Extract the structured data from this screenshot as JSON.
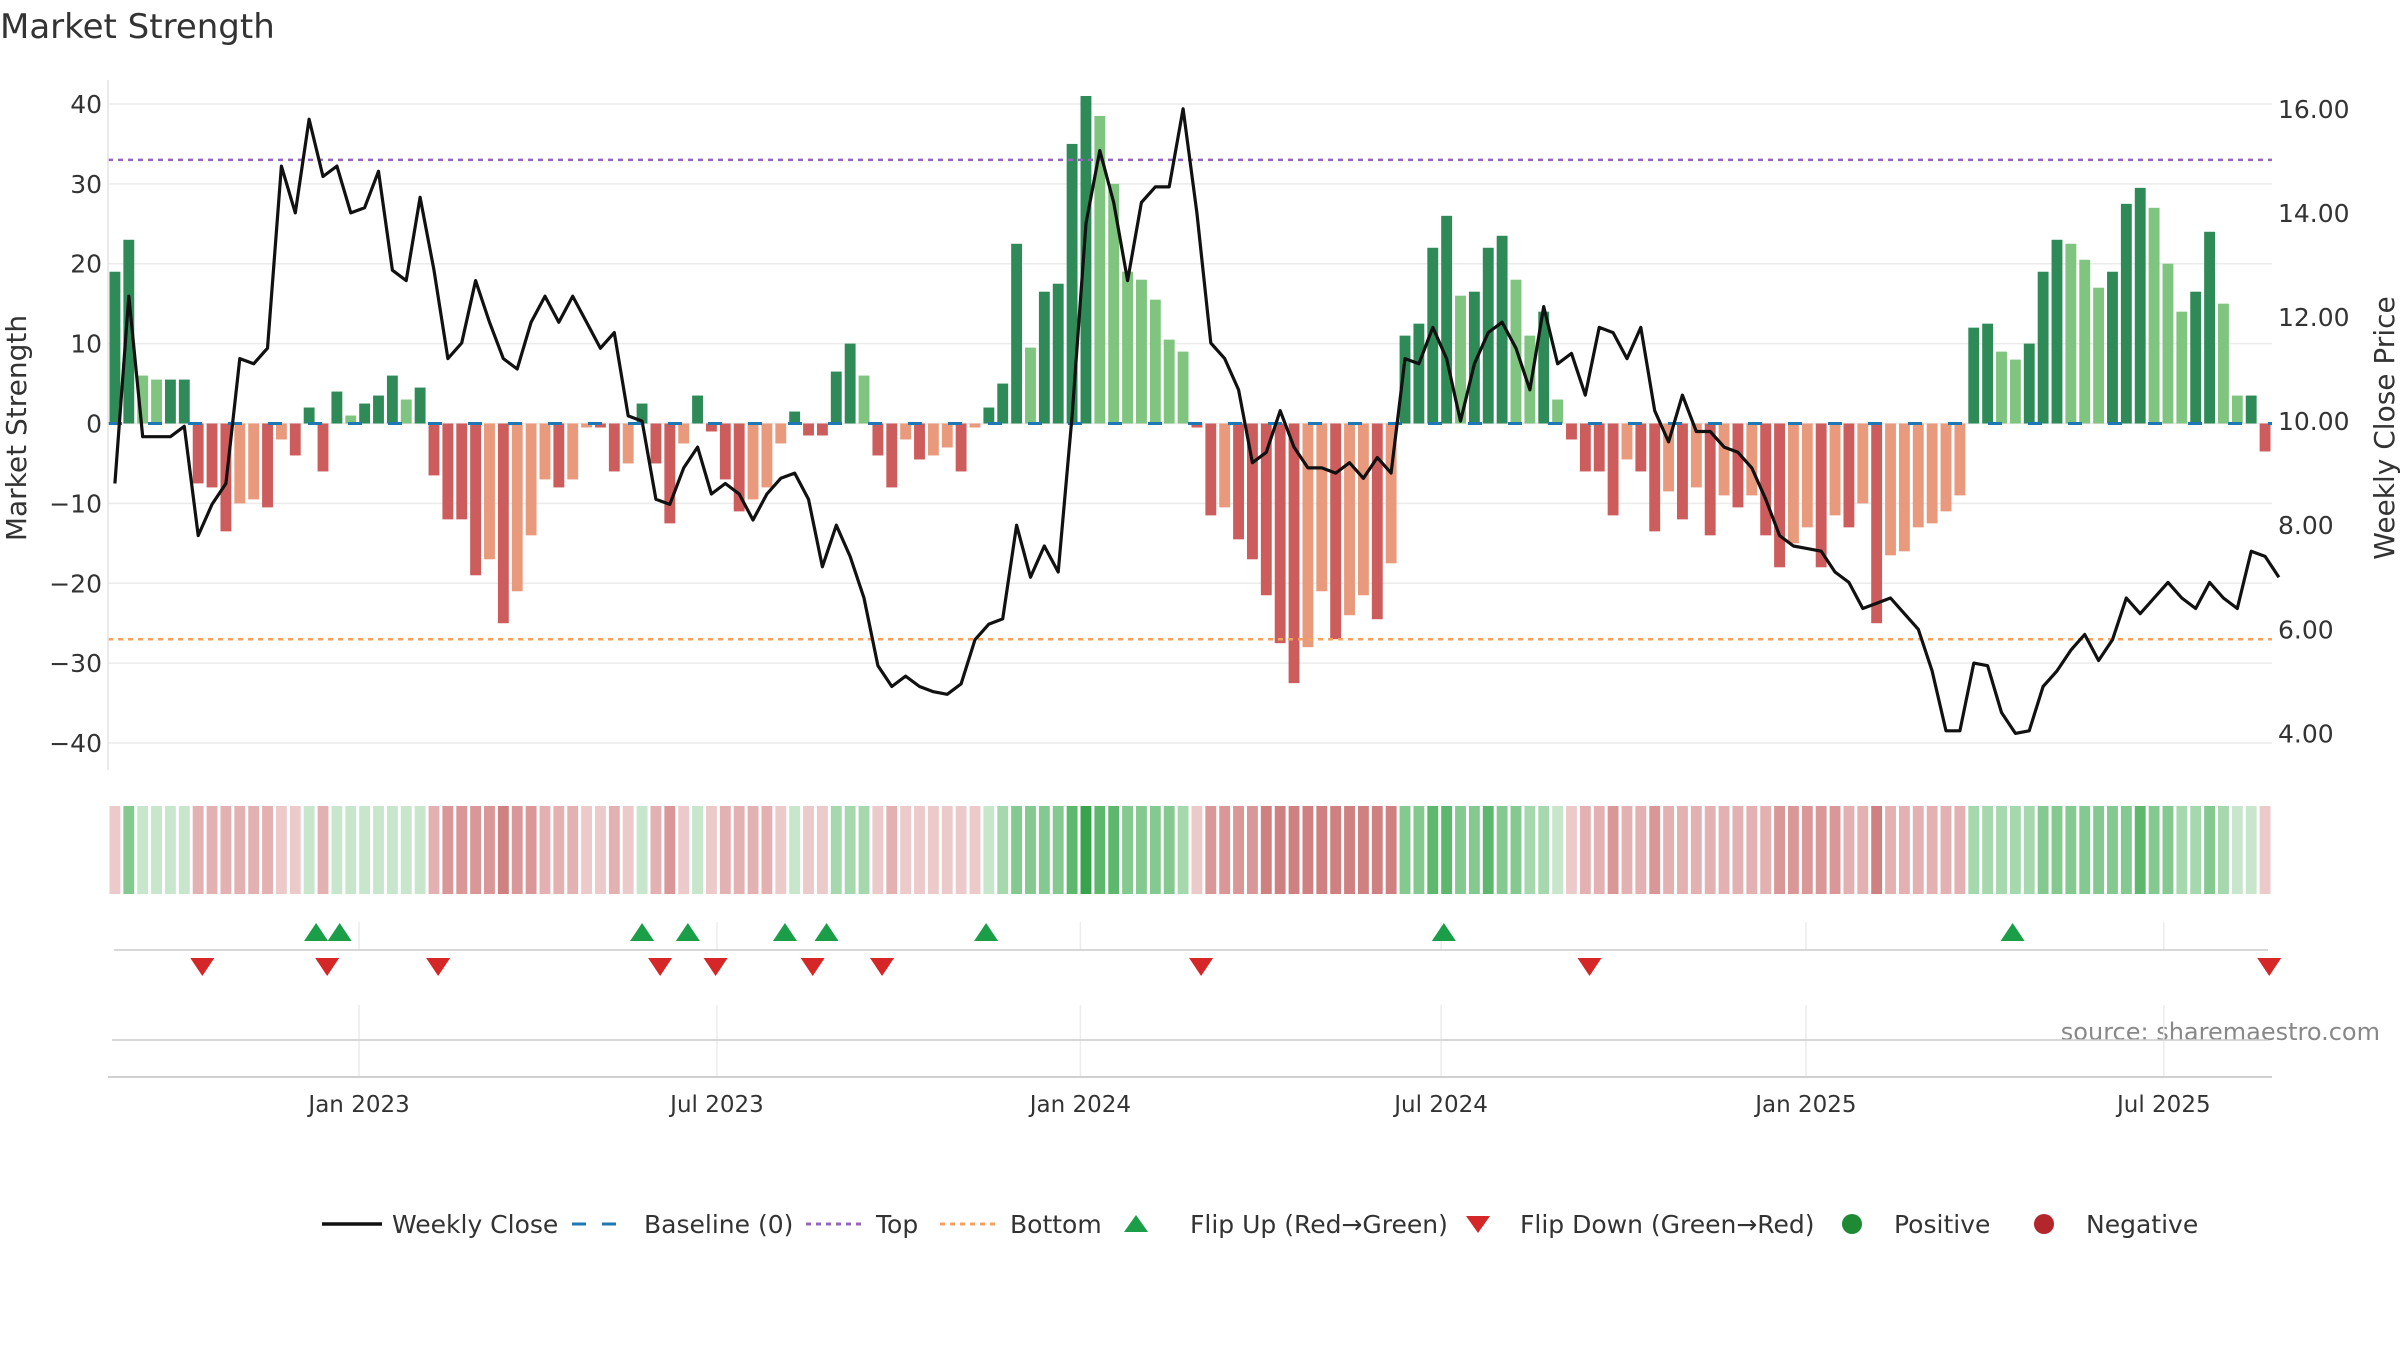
{
  "chart_data": {
    "type": "bar",
    "title": "Market Strength",
    "ylabel": "Market Strength",
    "ylabel_right": "Weekly Close Price",
    "ylim": [
      -44,
      42
    ],
    "ylim_right": [
      3.2,
      16.4
    ],
    "yticks": [
      -40,
      -30,
      -20,
      -10,
      0,
      10,
      20,
      30,
      40
    ],
    "yticks_right": [
      "4.00",
      "6.00",
      "8.00",
      "10.00",
      "12.00",
      "14.00",
      "16.00"
    ],
    "xtick_labels": [
      "Jan 2023",
      "Jul 2023",
      "Jan 2024",
      "Jul 2024",
      "Jan 2025",
      "Jul 2025"
    ],
    "xtick_weeks": [
      17.6,
      43.4,
      69.6,
      95.6,
      121.9,
      147.7
    ],
    "top_threshold": 33,
    "bottom_threshold": -27,
    "source": "source: sharemaestro.com",
    "strength": [
      19,
      23,
      6,
      5.5,
      5.5,
      5.5,
      -7.5,
      -8,
      -13.5,
      -10,
      -9.5,
      -10.5,
      -2,
      -4,
      2,
      -6,
      4,
      1,
      2.5,
      3.5,
      6,
      3,
      4.5,
      -6.5,
      -12,
      -12,
      -19,
      -17,
      -25,
      -21,
      -14,
      -7,
      -8,
      -7,
      -0.5,
      -0.5,
      -6,
      -5,
      2.5,
      -5,
      -12.5,
      -2.5,
      3.5,
      -1,
      -7,
      -11,
      -9.5,
      -8,
      -2.5,
      1.5,
      -1.5,
      -1.5,
      6.5,
      10,
      6,
      -4,
      -8,
      -2,
      -4.5,
      -4,
      -3,
      -6,
      -0.5,
      2,
      5,
      22.5,
      9.5,
      16.5,
      17.5,
      35,
      41,
      38.5,
      30,
      19,
      18,
      15.5,
      10.5,
      9,
      -0.5,
      -11.5,
      -10.5,
      -14.5,
      -17,
      -21.5,
      -27.5,
      -32.5,
      -28,
      -21,
      -27,
      -24,
      -21.5,
      -24.5,
      -17.5,
      11,
      12.5,
      22,
      26,
      16,
      16.5,
      22,
      23.5,
      18,
      11,
      14,
      3,
      -2,
      -6,
      -6,
      -11.5,
      -4.5,
      -6,
      -13.5,
      -8.5,
      -12,
      -8,
      -14,
      -9,
      -10.5,
      -9,
      -14,
      -18,
      -15,
      -13,
      -18,
      -11.5,
      -13,
      -10,
      -25,
      -16.5,
      -16,
      -13,
      -12.5,
      -11,
      -9,
      12,
      12.5,
      9,
      8,
      10,
      19,
      23,
      22.5,
      20.5,
      17,
      19,
      27.5,
      29.5,
      27,
      20,
      14,
      16.5,
      24,
      15,
      3.5,
      3.5,
      -3.5
    ],
    "close": [
      8.8,
      12.4,
      9.7,
      9.7,
      9.7,
      9.9,
      7.8,
      8.4,
      8.8,
      11.2,
      11.1,
      11.4,
      14.9,
      14.0,
      15.8,
      14.7,
      14.9,
      14.0,
      14.1,
      14.8,
      12.9,
      12.7,
      14.3,
      12.9,
      11.2,
      11.5,
      12.7,
      11.9,
      11.2,
      11.0,
      11.9,
      12.4,
      11.9,
      12.4,
      11.9,
      11.4,
      11.7,
      10.1,
      10.0,
      8.5,
      8.4,
      9.1,
      9.5,
      8.6,
      8.8,
      8.6,
      8.1,
      8.6,
      8.9,
      9.0,
      8.5,
      7.2,
      8.0,
      7.4,
      6.6,
      5.3,
      4.9,
      5.1,
      4.9,
      4.8,
      4.75,
      4.95,
      5.8,
      6.1,
      6.2,
      8.0,
      7.0,
      7.6,
      7.1,
      10.1,
      13.8,
      15.2,
      14.2,
      12.7,
      14.2,
      14.5,
      14.5,
      16.0,
      14.0,
      11.5,
      11.2,
      10.6,
      9.2,
      9.4,
      10.2,
      9.5,
      9.1,
      9.1,
      9.0,
      9.2,
      8.9,
      9.3,
      9.0,
      11.2,
      11.1,
      11.8,
      11.2,
      10.0,
      11.1,
      11.7,
      11.9,
      11.4,
      10.6,
      12.2,
      11.1,
      11.3,
      10.5,
      11.8,
      11.7,
      11.2,
      11.8,
      10.2,
      9.6,
      10.5,
      9.8,
      9.8,
      9.5,
      9.4,
      9.1,
      8.5,
      7.8,
      7.6,
      7.55,
      7.5,
      7.1,
      6.9,
      6.4,
      6.5,
      6.6,
      6.3,
      6.0,
      5.2,
      4.05,
      4.05,
      5.35,
      5.3,
      4.4,
      4.0,
      4.05,
      4.9,
      5.2,
      5.6,
      5.9,
      5.4,
      5.8,
      6.6,
      6.3,
      6.6,
      6.9,
      6.6,
      6.4,
      6.9,
      6.6,
      6.4,
      7.5,
      7.4,
      7.0
    ],
    "gauge_levels": [
      -1,
      3,
      1,
      1,
      1,
      1,
      -2,
      -2,
      -2,
      -2,
      -2,
      -2,
      -1,
      -1,
      1,
      -2,
      1,
      1,
      1,
      1,
      1,
      1,
      1,
      -2,
      -3,
      -3,
      -3,
      -3,
      -4,
      -3,
      -3,
      -2,
      -2,
      -2,
      -1,
      -1,
      -2,
      -1,
      1,
      -2,
      -3,
      -1,
      1,
      -1,
      -2,
      -2,
      -2,
      -2,
      -1,
      1,
      -1,
      -1,
      2,
      2,
      2,
      -1,
      -2,
      -1,
      -1,
      -1,
      -1,
      -1,
      -1,
      1,
      2,
      3,
      3,
      3,
      3,
      4,
      5,
      4,
      4,
      3,
      3,
      3,
      3,
      2,
      -1,
      -3,
      -3,
      -3,
      -3,
      -4,
      -4,
      -4,
      -4,
      -4,
      -4,
      -4,
      -4,
      -4,
      -4,
      3,
      3,
      4,
      4,
      3,
      3,
      4,
      3,
      3,
      2,
      2,
      1,
      -1,
      -2,
      -2,
      -3,
      -2,
      -2,
      -3,
      -2,
      -2,
      -2,
      -2,
      -2,
      -2,
      -2,
      -2,
      -3,
      -3,
      -3,
      -3,
      -3,
      -2,
      -2,
      -4,
      -2,
      -2,
      -2,
      -2,
      -2,
      -2,
      2,
      2,
      2,
      2,
      2,
      3,
      3,
      3,
      3,
      3,
      3,
      3,
      4,
      3,
      3,
      2,
      2,
      3,
      2,
      1,
      1,
      -1
    ],
    "flip_up_weeks": [
      14.5,
      16.2,
      38,
      41.3,
      48.3,
      51.3,
      62.8,
      95.8,
      136.8
    ],
    "flip_down_weeks": [
      6.3,
      15.3,
      23.3,
      39.3,
      43.3,
      50.3,
      55.3,
      78.3,
      106.3,
      155.3
    ],
    "legend": [
      {
        "label": "Weekly Close",
        "kind": "line",
        "color": "#111111"
      },
      {
        "label": "Baseline (0)",
        "kind": "dash",
        "color": "#1f77b4"
      },
      {
        "label": "Top",
        "kind": "dot",
        "color": "#9467bd"
      },
      {
        "label": "Bottom",
        "kind": "dot",
        "color": "#f4a261"
      },
      {
        "label": "Flip Up (Red→Green)",
        "kind": "tri-up",
        "color": "#1a9e48"
      },
      {
        "label": "Flip Down (Green→Red)",
        "kind": "tri-down",
        "color": "#d62728"
      },
      {
        "label": "Positive",
        "kind": "circle",
        "color": "#1e8a34"
      },
      {
        "label": "Negative",
        "kind": "circle",
        "color": "#b2262c"
      }
    ]
  }
}
